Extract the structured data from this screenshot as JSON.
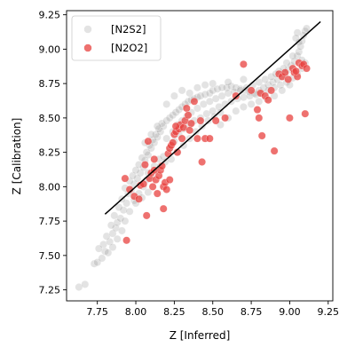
{
  "chart_data": {
    "type": "scatter",
    "title": "",
    "xlabel": "Z [Inferred]",
    "ylabel": "Z [Calibration]",
    "xlim": [
      7.55,
      9.28
    ],
    "ylim": [
      7.17,
      9.28
    ],
    "xticks": [
      "7.75",
      "8.00",
      "8.25",
      "8.50",
      "8.75",
      "9.00",
      "9.25"
    ],
    "yticks": [
      "7.25",
      "7.50",
      "7.75",
      "8.00",
      "8.25",
      "8.50",
      "8.75",
      "9.00",
      "9.25"
    ],
    "grid": false,
    "legend_position": "top-left",
    "reference_line": {
      "x": [
        7.8,
        9.2
      ],
      "y": [
        7.8,
        9.2
      ],
      "color": "#000000"
    },
    "series": [
      {
        "name": "[N2S2]",
        "color": "#7f7f7f",
        "alpha": 0.22,
        "points": [
          [
            7.63,
            7.27
          ],
          [
            7.67,
            7.29
          ],
          [
            7.73,
            7.44
          ],
          [
            7.75,
            7.45
          ],
          [
            7.78,
            7.48
          ],
          [
            7.8,
            7.53
          ],
          [
            7.82,
            7.52
          ],
          [
            7.79,
            7.58
          ],
          [
            7.83,
            7.6
          ],
          [
            7.81,
            7.64
          ],
          [
            7.85,
            7.66
          ],
          [
            7.87,
            7.7
          ],
          [
            7.84,
            7.72
          ],
          [
            7.88,
            7.74
          ],
          [
            7.9,
            7.77
          ],
          [
            7.86,
            7.79
          ],
          [
            7.92,
            7.83
          ],
          [
            7.89,
            7.85
          ],
          [
            7.94,
            7.88
          ],
          [
            7.91,
            7.91
          ],
          [
            7.95,
            7.95
          ],
          [
            7.97,
            7.97
          ],
          [
            7.93,
            7.99
          ],
          [
            7.99,
            8.02
          ],
          [
            7.96,
            8.04
          ],
          [
            8.01,
            8.06
          ],
          [
            7.98,
            8.08
          ],
          [
            8.03,
            8.1
          ],
          [
            8.0,
            8.12
          ],
          [
            8.05,
            8.14
          ],
          [
            8.02,
            8.16
          ],
          [
            8.06,
            8.19
          ],
          [
            8.04,
            8.21
          ],
          [
            8.08,
            8.23
          ],
          [
            8.07,
            8.25
          ],
          [
            8.1,
            8.28
          ],
          [
            8.09,
            8.3
          ],
          [
            8.12,
            8.32
          ],
          [
            8.11,
            8.34
          ],
          [
            8.14,
            8.36
          ],
          [
            8.13,
            8.38
          ],
          [
            8.16,
            8.4
          ],
          [
            8.15,
            8.42
          ],
          [
            8.18,
            8.44
          ],
          [
            8.17,
            8.46
          ],
          [
            8.2,
            8.48
          ],
          [
            8.22,
            8.5
          ],
          [
            8.24,
            8.52
          ],
          [
            8.26,
            8.54
          ],
          [
            8.28,
            8.56
          ],
          [
            8.3,
            8.58
          ],
          [
            8.32,
            8.6
          ],
          [
            8.34,
            8.62
          ],
          [
            8.36,
            8.63
          ],
          [
            8.38,
            8.64
          ],
          [
            8.4,
            8.65
          ],
          [
            8.42,
            8.66
          ],
          [
            8.45,
            8.67
          ],
          [
            8.48,
            8.68
          ],
          [
            8.5,
            8.7
          ],
          [
            8.53,
            8.71
          ],
          [
            8.56,
            8.72
          ],
          [
            8.59,
            8.72
          ],
          [
            8.62,
            8.73
          ],
          [
            8.65,
            8.72
          ],
          [
            8.68,
            8.71
          ],
          [
            8.71,
            8.7
          ],
          [
            8.74,
            8.69
          ],
          [
            8.77,
            8.68
          ],
          [
            8.8,
            8.7
          ],
          [
            8.83,
            8.72
          ],
          [
            8.86,
            8.74
          ],
          [
            8.89,
            8.76
          ],
          [
            8.92,
            8.78
          ],
          [
            8.95,
            8.8
          ],
          [
            8.97,
            8.82
          ],
          [
            8.99,
            8.85
          ],
          [
            9.01,
            8.88
          ],
          [
            9.03,
            8.91
          ],
          [
            9.05,
            8.95
          ],
          [
            9.06,
            8.98
          ],
          [
            9.07,
            9.02
          ],
          [
            9.08,
            9.06
          ],
          [
            9.09,
            9.1
          ],
          [
            9.1,
            9.13
          ],
          [
            9.11,
            9.15
          ],
          [
            9.05,
            9.12
          ],
          [
            9.04,
            9.08
          ],
          [
            8.08,
            8.1
          ],
          [
            8.12,
            8.15
          ],
          [
            8.15,
            8.2
          ],
          [
            8.18,
            8.22
          ],
          [
            8.22,
            8.28
          ],
          [
            8.25,
            8.33
          ],
          [
            8.28,
            8.38
          ],
          [
            8.31,
            8.42
          ],
          [
            8.35,
            8.45
          ],
          [
            8.38,
            8.48
          ],
          [
            8.42,
            8.5
          ],
          [
            8.46,
            8.53
          ],
          [
            8.5,
            8.55
          ],
          [
            8.54,
            8.58
          ],
          [
            8.58,
            8.6
          ],
          [
            8.62,
            8.62
          ],
          [
            8.66,
            8.64
          ],
          [
            8.7,
            8.65
          ],
          [
            8.74,
            8.66
          ],
          [
            8.78,
            8.67
          ],
          [
            8.82,
            8.68
          ],
          [
            8.86,
            8.7
          ],
          [
            8.9,
            8.72
          ],
          [
            8.94,
            8.74
          ],
          [
            8.98,
            8.76
          ],
          [
            9.02,
            8.79
          ],
          [
            9.05,
            8.82
          ],
          [
            9.08,
            8.86
          ],
          [
            9.1,
            8.9
          ],
          [
            8.2,
            8.35
          ],
          [
            8.24,
            8.4
          ],
          [
            8.27,
            8.45
          ],
          [
            8.3,
            8.48
          ],
          [
            8.33,
            8.51
          ],
          [
            8.36,
            8.54
          ],
          [
            8.4,
            8.57
          ],
          [
            8.44,
            8.6
          ],
          [
            8.48,
            8.62
          ],
          [
            8.52,
            8.64
          ],
          [
            8.56,
            8.66
          ],
          [
            8.6,
            8.68
          ],
          [
            8.64,
            8.69
          ],
          [
            8.68,
            8.7
          ],
          [
            8.72,
            8.72
          ],
          [
            8.76,
            8.74
          ],
          [
            8.8,
            8.76
          ],
          [
            8.84,
            8.78
          ],
          [
            8.88,
            8.8
          ],
          [
            7.93,
            7.75
          ],
          [
            7.96,
            7.82
          ],
          [
            7.99,
            7.9
          ],
          [
            8.02,
            7.95
          ],
          [
            8.05,
            8.0
          ],
          [
            8.07,
            8.05
          ],
          [
            8.1,
            8.08
          ],
          [
            8.13,
            8.12
          ],
          [
            8.16,
            8.15
          ],
          [
            8.19,
            8.18
          ],
          [
            8.23,
            8.2
          ],
          [
            8.27,
            8.25
          ],
          [
            8.31,
            8.3
          ],
          [
            8.35,
            8.35
          ],
          [
            8.39,
            8.4
          ],
          [
            8.43,
            8.44
          ],
          [
            8.47,
            8.48
          ],
          [
            8.51,
            8.51
          ],
          [
            8.55,
            8.54
          ],
          [
            8.3,
            8.7
          ],
          [
            8.4,
            8.72
          ],
          [
            8.5,
            8.75
          ],
          [
            8.6,
            8.76
          ],
          [
            8.7,
            8.78
          ],
          [
            8.2,
            8.6
          ],
          [
            8.25,
            8.66
          ],
          [
            8.35,
            8.68
          ],
          [
            8.45,
            8.74
          ],
          [
            7.85,
            7.56
          ],
          [
            7.88,
            7.62
          ],
          [
            7.91,
            7.68
          ],
          [
            7.76,
            7.55
          ],
          [
            8.0,
            7.88
          ],
          [
            8.04,
            7.92
          ],
          [
            8.08,
            7.96
          ],
          [
            8.06,
            8.32
          ],
          [
            8.1,
            8.38
          ],
          [
            8.14,
            8.44
          ],
          [
            8.55,
            8.45
          ],
          [
            8.6,
            8.5
          ],
          [
            8.65,
            8.55
          ],
          [
            8.7,
            8.58
          ],
          [
            8.75,
            8.6
          ],
          [
            8.8,
            8.62
          ],
          [
            8.85,
            8.64
          ],
          [
            8.9,
            8.66
          ],
          [
            8.95,
            8.7
          ],
          [
            9.0,
            8.74
          ],
          [
            9.02,
            8.95
          ],
          [
            9.06,
            9.05
          ],
          [
            9.08,
            8.92
          ],
          [
            8.98,
            8.9
          ],
          [
            8.96,
            8.86
          ],
          [
            8.93,
            8.84
          ],
          [
            8.91,
            8.82
          ]
        ]
      },
      {
        "name": "[N2O2]",
        "color": "#e8413f",
        "alpha": 0.75,
        "points": [
          [
            7.93,
            8.06
          ],
          [
            7.94,
            7.61
          ],
          [
            7.96,
            7.98
          ],
          [
            7.99,
            7.93
          ],
          [
            8.02,
            7.91
          ],
          [
            8.03,
            8.01
          ],
          [
            8.05,
            8.02
          ],
          [
            8.06,
            8.16
          ],
          [
            8.07,
            7.79
          ],
          [
            8.08,
            8.33
          ],
          [
            8.09,
            8.06
          ],
          [
            8.1,
            8.1
          ],
          [
            8.11,
            8.0
          ],
          [
            8.12,
            8.2
          ],
          [
            8.13,
            8.05
          ],
          [
            8.14,
            7.95
          ],
          [
            8.15,
            8.08
          ],
          [
            8.16,
            8.12
          ],
          [
            8.17,
            8.15
          ],
          [
            8.18,
            8.0
          ],
          [
            8.19,
            8.03
          ],
          [
            8.2,
            7.98
          ],
          [
            8.21,
            8.24
          ],
          [
            8.22,
            8.28
          ],
          [
            8.23,
            8.3
          ],
          [
            8.24,
            8.32
          ],
          [
            8.25,
            8.38
          ],
          [
            8.26,
            8.4
          ],
          [
            8.27,
            8.25
          ],
          [
            8.28,
            8.42
          ],
          [
            8.29,
            8.45
          ],
          [
            8.3,
            8.35
          ],
          [
            8.31,
            8.43
          ],
          [
            8.32,
            8.48
          ],
          [
            8.33,
            8.57
          ],
          [
            8.34,
            8.52
          ],
          [
            8.36,
            8.46
          ],
          [
            8.38,
            8.62
          ],
          [
            8.4,
            8.35
          ],
          [
            8.42,
            8.48
          ],
          [
            8.43,
            8.18
          ],
          [
            8.45,
            8.35
          ],
          [
            8.48,
            8.35
          ],
          [
            8.52,
            8.48
          ],
          [
            8.58,
            8.5
          ],
          [
            8.65,
            8.66
          ],
          [
            8.7,
            8.89
          ],
          [
            8.75,
            8.7
          ],
          [
            8.79,
            8.56
          ],
          [
            8.8,
            8.5
          ],
          [
            8.81,
            8.68
          ],
          [
            8.82,
            8.37
          ],
          [
            8.84,
            8.66
          ],
          [
            8.86,
            8.63
          ],
          [
            8.88,
            8.7
          ],
          [
            8.9,
            8.26
          ],
          [
            8.93,
            8.82
          ],
          [
            8.95,
            8.8
          ],
          [
            8.97,
            8.83
          ],
          [
            8.99,
            8.78
          ],
          [
            9.0,
            8.5
          ],
          [
            9.02,
            8.86
          ],
          [
            9.03,
            8.83
          ],
          [
            9.05,
            8.8
          ],
          [
            9.06,
            8.9
          ],
          [
            9.08,
            8.88
          ],
          [
            9.09,
            8.89
          ],
          [
            9.1,
            8.53
          ],
          [
            9.11,
            8.86
          ],
          [
            9.04,
            8.84
          ],
          [
            8.22,
            8.05
          ],
          [
            8.18,
            7.84
          ],
          [
            8.12,
            8.12
          ],
          [
            8.26,
            8.44
          ],
          [
            8.35,
            8.41
          ]
        ]
      }
    ]
  }
}
